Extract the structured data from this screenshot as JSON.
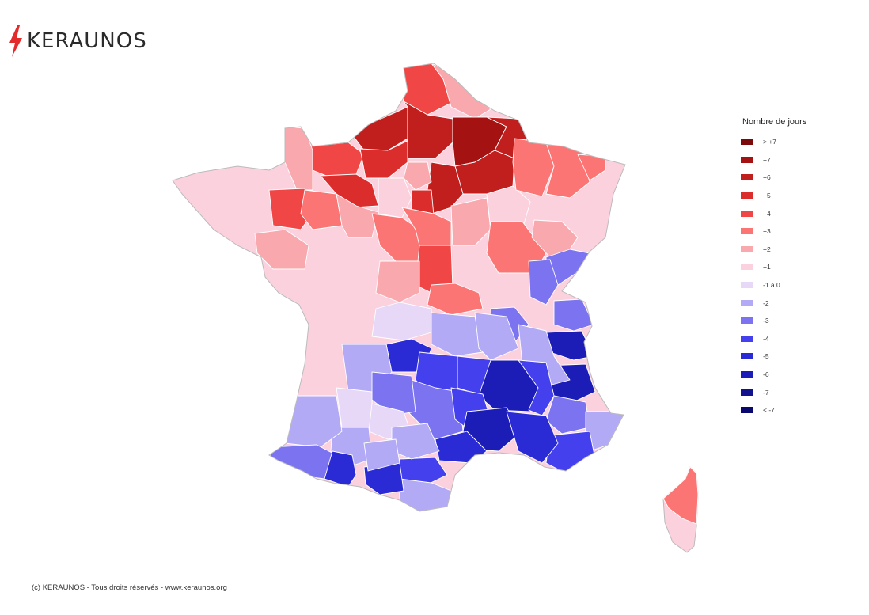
{
  "brand": {
    "name": "KERAUNOS",
    "accent": "#e32b2b"
  },
  "legend": {
    "title": "Nombre de jours",
    "items": [
      {
        "label": "> +7",
        "color": "#7d0a0a"
      },
      {
        "label": "+7",
        "color": "#a41212"
      },
      {
        "label": "+6",
        "color": "#c11e1e"
      },
      {
        "label": "+5",
        "color": "#dc2d2d"
      },
      {
        "label": "+4",
        "color": "#f04646"
      },
      {
        "label": "+3",
        "color": "#fb7575"
      },
      {
        "label": "+2",
        "color": "#f9a8ae"
      },
      {
        "label": "+1",
        "color": "#fbd1de"
      },
      {
        "label": "-1 à 0",
        "color": "#e7d8f7"
      },
      {
        "label": "-2",
        "color": "#b2aaf5"
      },
      {
        "label": "-3",
        "color": "#7b73ef"
      },
      {
        "label": "-4",
        "color": "#4440ee"
      },
      {
        "label": "-5",
        "color": "#2b2bd6"
      },
      {
        "label": "-6",
        "color": "#1c1cb6"
      },
      {
        "label": "-7",
        "color": "#12128f"
      },
      {
        "label": "< -7",
        "color": "#08086e"
      }
    ]
  },
  "footer": {
    "text": "(c) KERAUNOS - Tous droits réservés - www.keraunos.org"
  }
}
